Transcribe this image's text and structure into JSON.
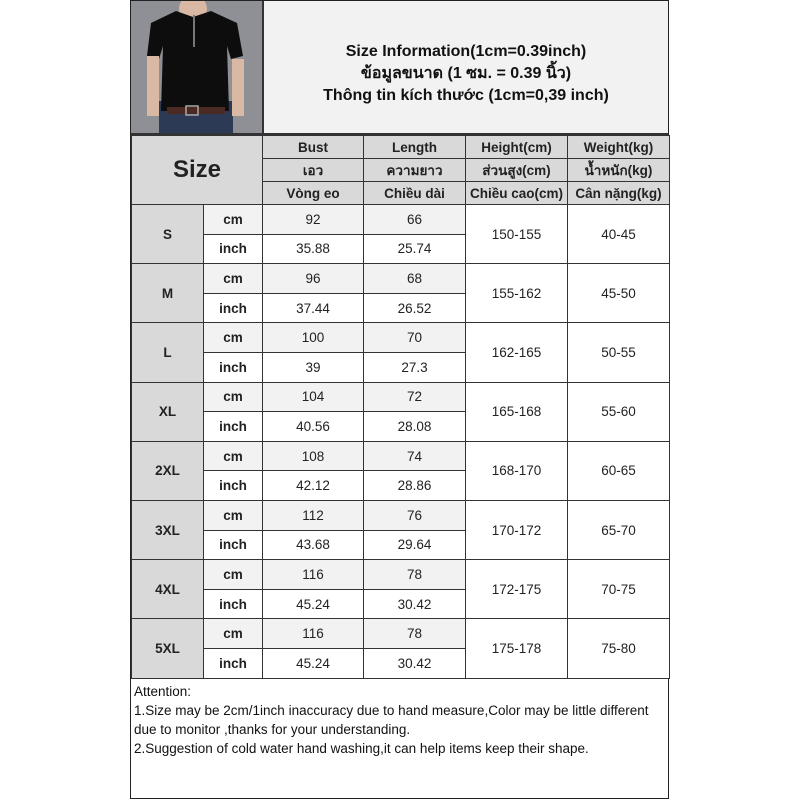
{
  "title": {
    "line1": "Size Information(1cm=0.39inch)",
    "line2": "ข้อมูลขนาด (1 ซม. = 0.39 นิ้ว)",
    "line3": "Thông tin kích thước (1cm=0,39 inch)"
  },
  "header": {
    "size_label": "Size",
    "columns": [
      {
        "en": "Bust",
        "th": "เอว",
        "vi": "Vòng eo"
      },
      {
        "en": "Length",
        "th": "ความยาว",
        "vi": "Chiều dài"
      },
      {
        "en": "Height(cm)",
        "th": "ส่วนสูง(cm)",
        "vi": "Chiều cao(cm)"
      },
      {
        "en": "Weight(kg)",
        "th": "น้ำหนัก(kg)",
        "vi": "Cân nặng(kg)"
      }
    ]
  },
  "units": {
    "cm": "cm",
    "inch": "inch"
  },
  "rows": [
    {
      "size": "S",
      "bust_cm": "92",
      "length_cm": "66",
      "bust_in": "35.88",
      "length_in": "25.74",
      "height": "150-155",
      "weight": "40-45"
    },
    {
      "size": "M",
      "bust_cm": "96",
      "length_cm": "68",
      "bust_in": "37.44",
      "length_in": "26.52",
      "height": "155-162",
      "weight": "45-50"
    },
    {
      "size": "L",
      "bust_cm": "100",
      "length_cm": "70",
      "bust_in": "39",
      "length_in": "27.3",
      "height": "162-165",
      "weight": "50-55"
    },
    {
      "size": "XL",
      "bust_cm": "104",
      "length_cm": "72",
      "bust_in": "40.56",
      "length_in": "28.08",
      "height": "165-168",
      "weight": "55-60"
    },
    {
      "size": "2XL",
      "bust_cm": "108",
      "length_cm": "74",
      "bust_in": "42.12",
      "length_in": "28.86",
      "height": "168-170",
      "weight": "60-65"
    },
    {
      "size": "3XL",
      "bust_cm": "112",
      "length_cm": "76",
      "bust_in": "43.68",
      "length_in": "29.64",
      "height": "170-172",
      "weight": "65-70"
    },
    {
      "size": "4XL",
      "bust_cm": "116",
      "length_cm": "78",
      "bust_in": "45.24",
      "length_in": "30.42",
      "height": "172-175",
      "weight": "70-75"
    },
    {
      "size": "5XL",
      "bust_cm": "116",
      "length_cm": "78",
      "bust_in": "45.24",
      "length_in": "30.42",
      "height": "175-178",
      "weight": "75-80"
    }
  ],
  "notes": {
    "heading": "Attention:",
    "items": [
      "1.Size may be 2cm/1inch inaccuracy due to hand measure,Color may be little different due to monitor ,thanks for your understanding.",
      "2.Suggestion of cold water hand washing,it can help items keep their shape."
    ]
  },
  "colors": {
    "header_bg": "#d9d9d9",
    "cm_row_bg": "#f2f2f2",
    "border": "#333333"
  }
}
